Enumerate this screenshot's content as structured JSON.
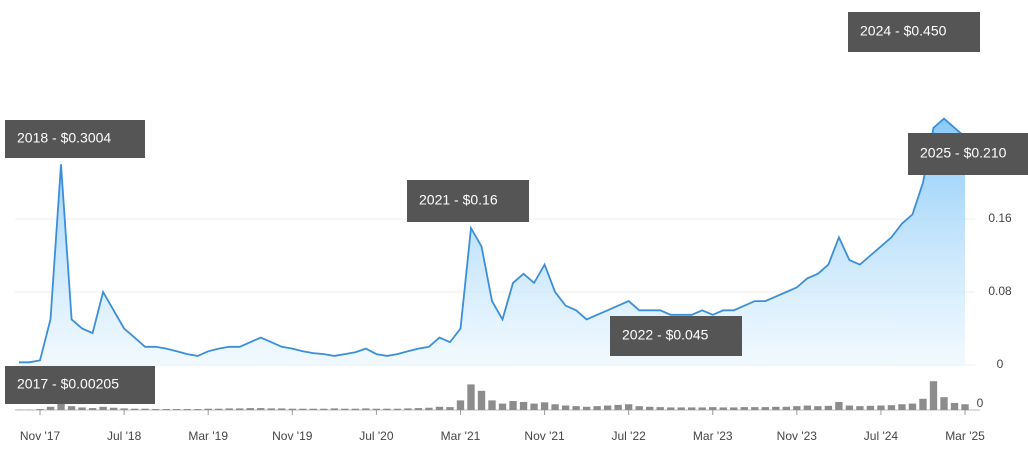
{
  "chart_data": {
    "type": "line",
    "x": [
      "2017-09",
      "2017-10",
      "2017-11",
      "2017-12",
      "2018-01",
      "2018-02",
      "2018-03",
      "2018-04",
      "2018-05",
      "2018-06",
      "2018-07",
      "2018-08",
      "2018-09",
      "2018-10",
      "2018-11",
      "2018-12",
      "2019-01",
      "2019-02",
      "2019-03",
      "2019-04",
      "2019-05",
      "2019-06",
      "2019-07",
      "2019-08",
      "2019-09",
      "2019-10",
      "2019-11",
      "2019-12",
      "2020-01",
      "2020-02",
      "2020-03",
      "2020-04",
      "2020-05",
      "2020-06",
      "2020-07",
      "2020-08",
      "2020-09",
      "2020-10",
      "2020-11",
      "2020-12",
      "2021-01",
      "2021-02",
      "2021-03",
      "2021-04",
      "2021-05",
      "2021-06",
      "2021-07",
      "2021-08",
      "2021-09",
      "2021-10",
      "2021-11",
      "2021-12",
      "2022-01",
      "2022-02",
      "2022-03",
      "2022-04",
      "2022-05",
      "2022-06",
      "2022-07",
      "2022-08",
      "2022-09",
      "2022-10",
      "2022-11",
      "2022-12",
      "2023-01",
      "2023-02",
      "2023-03",
      "2023-04",
      "2023-05",
      "2023-06",
      "2023-07",
      "2023-08",
      "2023-09",
      "2023-10",
      "2023-11",
      "2023-12",
      "2024-01",
      "2024-02",
      "2024-03",
      "2024-04",
      "2024-05",
      "2024-06",
      "2024-07",
      "2024-08",
      "2024-09",
      "2024-10",
      "2024-11",
      "2024-12",
      "2025-01",
      "2025-02",
      "2025-03"
    ],
    "series": [
      {
        "color": "#3b8fd9",
        "values": [
          0.003,
          0.003,
          0.005,
          0.05,
          0.22,
          0.05,
          0.04,
          0.035,
          0.08,
          0.06,
          0.04,
          0.03,
          0.02,
          0.02,
          0.018,
          0.015,
          0.012,
          0.01,
          0.015,
          0.018,
          0.02,
          0.02,
          0.025,
          0.03,
          0.025,
          0.02,
          0.018,
          0.015,
          0.013,
          0.012,
          0.01,
          0.012,
          0.014,
          0.018,
          0.012,
          0.01,
          0.012,
          0.015,
          0.018,
          0.02,
          0.03,
          0.025,
          0.04,
          0.15,
          0.13,
          0.07,
          0.05,
          0.09,
          0.1,
          0.09,
          0.11,
          0.08,
          0.065,
          0.06,
          0.05,
          0.055,
          0.06,
          0.065,
          0.07,
          0.06,
          0.06,
          0.06,
          0.055,
          0.055,
          0.055,
          0.06,
          0.055,
          0.06,
          0.06,
          0.065,
          0.07,
          0.07,
          0.075,
          0.08,
          0.085,
          0.095,
          0.1,
          0.11,
          0.14,
          0.115,
          0.11,
          0.12,
          0.13,
          0.14,
          0.155,
          0.165,
          0.2,
          0.26,
          0.27,
          0.26,
          0.25
        ]
      },
      {
        "type": "bar",
        "axis": "y2",
        "color": "#8c8c8c",
        "values": [
          1,
          1,
          3,
          10,
          25,
          12,
          8,
          6,
          10,
          7,
          5,
          4,
          4,
          3,
          3,
          3,
          3,
          3,
          4,
          4,
          5,
          5,
          6,
          6,
          5,
          5,
          4,
          4,
          4,
          4,
          5,
          4,
          4,
          5,
          4,
          4,
          4,
          5,
          6,
          7,
          10,
          9,
          30,
          80,
          60,
          30,
          20,
          28,
          25,
          20,
          24,
          18,
          14,
          12,
          10,
          12,
          14,
          16,
          18,
          12,
          10,
          9,
          8,
          8,
          8,
          8,
          9,
          8,
          8,
          9,
          9,
          9,
          10,
          10,
          12,
          14,
          12,
          13,
          25,
          14,
          12,
          13,
          14,
          15,
          18,
          20,
          35,
          90,
          40,
          22,
          18
        ]
      }
    ],
    "ylim": [
      0,
      0.4
    ],
    "yticks": [
      0,
      0.08,
      0.16
    ],
    "y2lim": [
      0,
      100
    ],
    "y2ticks": [
      0
    ],
    "xticks": [
      {
        "value": "2017-11",
        "label": "Nov '17"
      },
      {
        "value": "2018-07",
        "label": "Jul '18"
      },
      {
        "value": "2019-03",
        "label": "Mar '19"
      },
      {
        "value": "2019-11",
        "label": "Nov '19"
      },
      {
        "value": "2020-07",
        "label": "Jul '20"
      },
      {
        "value": "2021-03",
        "label": "Mar '21"
      },
      {
        "value": "2021-11",
        "label": "Nov '21"
      },
      {
        "value": "2022-07",
        "label": "Jul '22"
      },
      {
        "value": "2023-03",
        "label": "Mar '23"
      },
      {
        "value": "2023-11",
        "label": "Nov '23"
      },
      {
        "value": "2024-07",
        "label": "Jul '24"
      },
      {
        "value": "2025-03",
        "label": "Mar '25"
      }
    ],
    "grid": true,
    "annotations": [
      "2018 - $0.3004",
      "2017 - $0.00205",
      "2021 - $0.16",
      "2022 - $0.045",
      "2024 - $0.450",
      "2025 - $0.210"
    ]
  }
}
